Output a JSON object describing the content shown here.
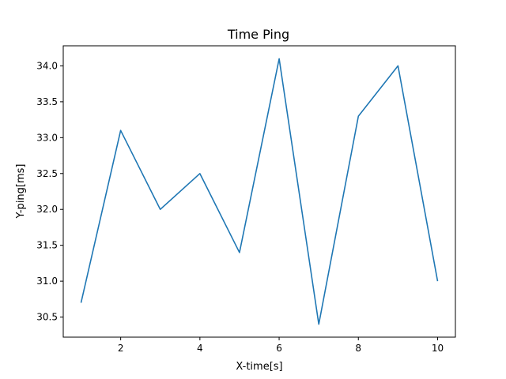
{
  "chart_data": {
    "type": "line",
    "title": "Time Ping",
    "xlabel": "X-time[s]",
    "ylabel": "Y-ping[ms]",
    "x": [
      1,
      2,
      3,
      4,
      5,
      6,
      7,
      8,
      9,
      10
    ],
    "series": [
      {
        "values": [
          30.7,
          33.1,
          32.0,
          32.5,
          31.4,
          34.1,
          30.4,
          33.3,
          34.0,
          31.0
        ]
      }
    ],
    "xlim": [
      0.55,
      10.45
    ],
    "ylim": [
      30.22,
      34.28
    ],
    "xticks": [
      "2",
      "4",
      "6",
      "8",
      "10"
    ],
    "yticks": [
      "30.5",
      "31.0",
      "31.5",
      "32.0",
      "32.5",
      "33.0",
      "33.5",
      "34.0"
    ],
    "grid": false,
    "line_color": "#1f77b4"
  }
}
